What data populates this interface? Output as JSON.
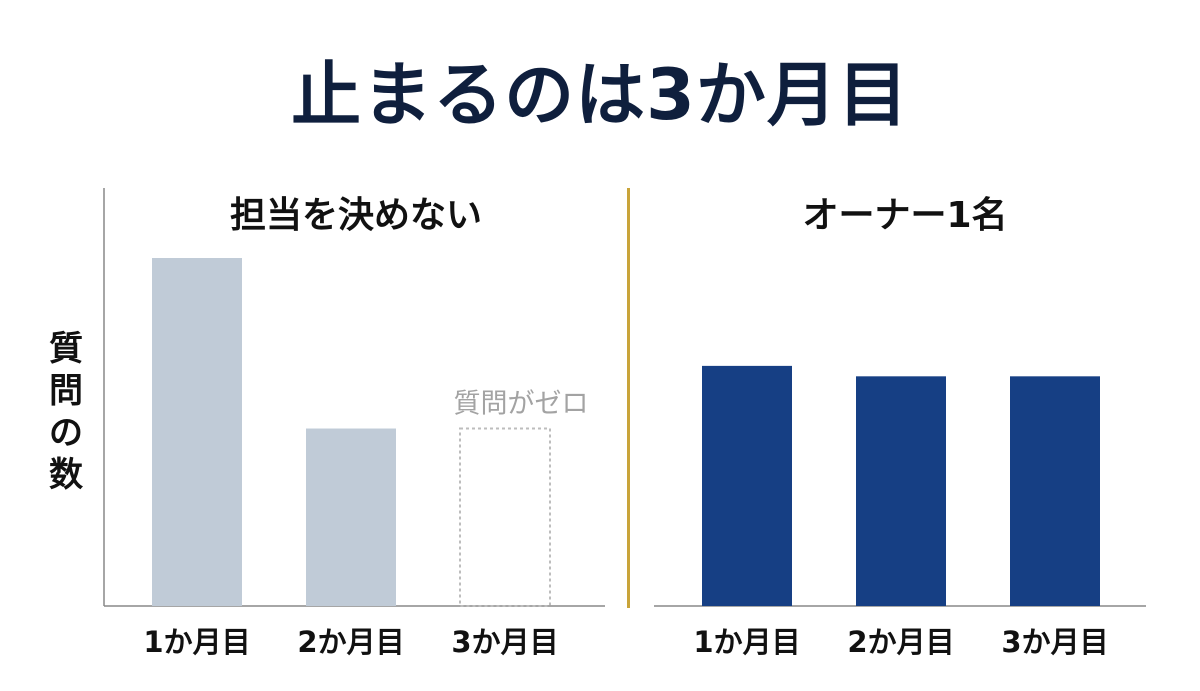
{
  "title": "止まるのは3か月目",
  "y_axis_label": "質問の数",
  "colors": {
    "title": "#0f1f3d",
    "left_bars": "#c0cbd7",
    "right_bars": "#163f84",
    "divider": "#c9a43a",
    "axis": "#888888",
    "zero_box": "#bdbdbd",
    "annotation": "#a3a3a3"
  },
  "chart_data": [
    {
      "type": "bar",
      "title": "担当を決めない",
      "categories": [
        "1か月目",
        "2か月目",
        "3か月目"
      ],
      "values": [
        100,
        51,
        0
      ],
      "ylabel": "質問の数",
      "ylim": [
        0,
        100
      ],
      "grid": false,
      "annotations": [
        {
          "category": "3か月目",
          "text": "質問がゼロ"
        }
      ]
    },
    {
      "type": "bar",
      "title": "オーナー1名",
      "categories": [
        "1か月目",
        "2か月目",
        "3か月目"
      ],
      "values": [
        69,
        66,
        66
      ],
      "ylabel": "質問の数",
      "ylim": [
        0,
        100
      ],
      "grid": false
    }
  ]
}
